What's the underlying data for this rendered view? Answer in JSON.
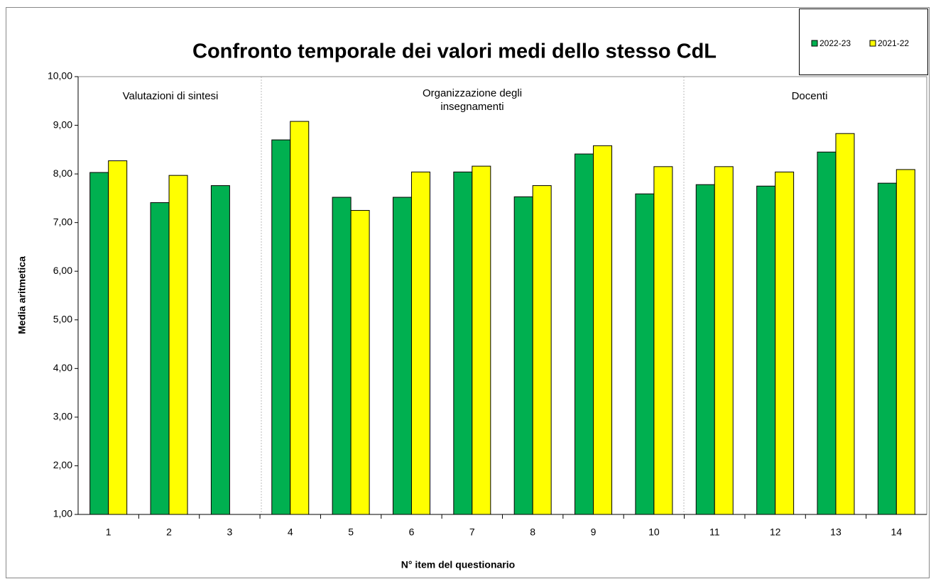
{
  "chart_data": {
    "type": "bar",
    "title": "Confronto temporale dei valori medi dello stesso CdL",
    "x_label": "N° item del questionario",
    "y_label": "Media aritmetica",
    "categories": [
      "1",
      "2",
      "3",
      "4",
      "5",
      "6",
      "7",
      "8",
      "9",
      "10",
      "11",
      "12",
      "13",
      "14"
    ],
    "series": [
      {
        "name": "2022-23",
        "color": "#00b050",
        "values": [
          8.03,
          7.41,
          7.76,
          8.7,
          7.52,
          7.52,
          8.04,
          7.53,
          8.41,
          7.59,
          7.78,
          7.75,
          8.45,
          7.81
        ]
      },
      {
        "name": "2021-22",
        "color": "#ffff00",
        "values": [
          8.27,
          7.97,
          null,
          9.08,
          7.25,
          8.04,
          8.16,
          7.76,
          8.58,
          8.15,
          8.15,
          8.04,
          8.83,
          8.09
        ]
      }
    ],
    "annotations": [
      "Valutazioni di sintesi",
      "Organizzazione degli\ninsegnamenti",
      "Docenti"
    ],
    "ylim": [
      1,
      10
    ],
    "yticks": [
      {
        "value": 1,
        "label": "1,00"
      },
      {
        "value": 2,
        "label": "2,00"
      },
      {
        "value": 3,
        "label": "3,00"
      },
      {
        "value": 4,
        "label": "4,00"
      },
      {
        "value": 5,
        "label": "5,00"
      },
      {
        "value": 6,
        "label": "6,00"
      },
      {
        "value": 7,
        "label": "7,00"
      },
      {
        "value": 8,
        "label": "8,00"
      },
      {
        "value": 9,
        "label": "9,00"
      },
      {
        "value": 10,
        "label": "10,00"
      }
    ],
    "legend": "top-right"
  }
}
